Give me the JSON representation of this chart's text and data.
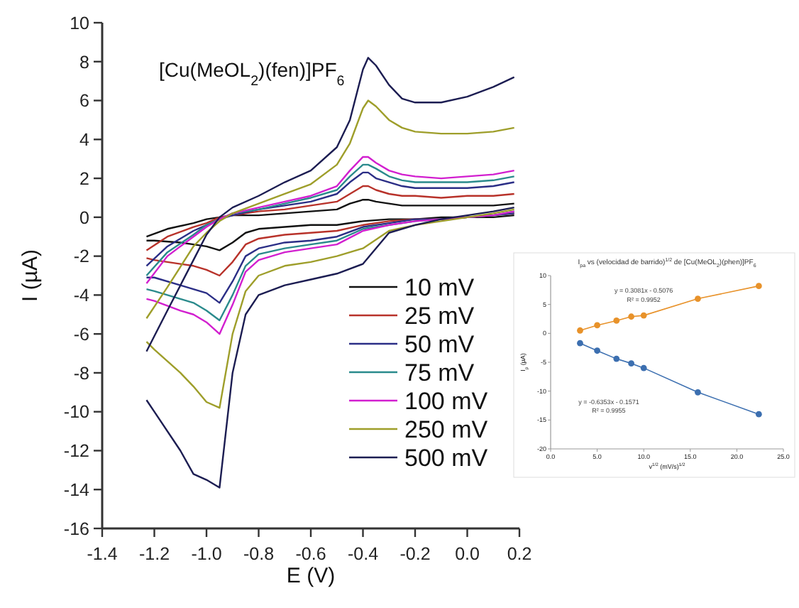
{
  "chart_data": [
    {
      "type": "line",
      "title": "[Cu(MeOL$_{2}$)(fen)]PF$_{6}$",
      "xlabel": "E (V)",
      "ylabel": "I (µA)",
      "xlim": [
        -1.4,
        0.2
      ],
      "ylim": [
        -16,
        10
      ],
      "xticks": [
        {
          "value": -1.4,
          "label": "-1.4"
        },
        {
          "value": -1.2,
          "label": "-1.2"
        },
        {
          "value": -1,
          "label": "-1.0"
        },
        {
          "value": -0.8,
          "label": "-0.8"
        },
        {
          "value": -0.6,
          "label": "-0.6"
        },
        {
          "value": -0.4,
          "label": "-0.4"
        },
        {
          "value": -0.2,
          "label": "-0.2"
        },
        {
          "value": 0,
          "label": "0.0"
        },
        {
          "value": 0.2,
          "label": "0.2"
        }
      ],
      "yticks": [
        -16,
        -14,
        -12,
        -10,
        -8,
        -6,
        -4,
        -2,
        0,
        2,
        4,
        6,
        8,
        10
      ],
      "grid": false,
      "legend": "bottom right",
      "marker": "none",
      "line_style": "solid",
      "x": [
        -1.23,
        -1.15,
        -1.05,
        -1.0,
        -0.95,
        -0.9,
        -0.8,
        -0.7,
        -0.6,
        -0.5,
        -0.45,
        -0.4,
        -0.38,
        -0.35,
        -0.3,
        -0.25,
        -0.2,
        -0.1,
        0.0,
        0.1,
        0.18
      ],
      "series": [
        {
          "name": "10 mV",
          "color": "#111111",
          "values": [
            -1.0,
            -0.6,
            -0.3,
            -0.1,
            0.0,
            0.1,
            0.1,
            0.2,
            0.3,
            0.4,
            0.7,
            0.9,
            0.9,
            0.8,
            0.7,
            0.6,
            0.6,
            0.6,
            0.6,
            0.6,
            0.7
          ]
        },
        {
          "color": "#111111",
          "x": [
            0.18,
            0.1,
            0.0,
            -0.1,
            -0.2,
            -0.3,
            -0.4,
            -0.5,
            -0.6,
            -0.7,
            -0.8,
            -0.85,
            -0.9,
            -0.95,
            -1.0,
            -1.05,
            -1.1,
            -1.2,
            -1.23
          ],
          "values": [
            0.1,
            0.0,
            0.0,
            0.0,
            -0.1,
            -0.1,
            -0.2,
            -0.4,
            -0.4,
            -0.5,
            -0.6,
            -0.8,
            -1.3,
            -1.7,
            -1.5,
            -1.4,
            -1.3,
            -1.2,
            -1.2
          ]
        },
        {
          "name": "25 mV",
          "color": "#b8322a",
          "values": [
            -1.7,
            -1.0,
            -0.5,
            -0.3,
            0.0,
            0.1,
            0.3,
            0.4,
            0.6,
            0.8,
            1.2,
            1.6,
            1.6,
            1.4,
            1.2,
            1.1,
            1.1,
            1.0,
            1.1,
            1.1,
            1.2
          ]
        },
        {
          "color": "#b8322a",
          "x": [
            0.18,
            0.1,
            0.0,
            -0.1,
            -0.2,
            -0.3,
            -0.4,
            -0.5,
            -0.6,
            -0.7,
            -0.8,
            -0.85,
            -0.9,
            -0.95,
            -1.0,
            -1.05,
            -1.1,
            -1.2,
            -1.23
          ],
          "values": [
            0.2,
            0.1,
            0.0,
            -0.1,
            -0.1,
            -0.2,
            -0.4,
            -0.7,
            -0.8,
            -0.9,
            -1.1,
            -1.4,
            -2.3,
            -3.0,
            -2.7,
            -2.5,
            -2.4,
            -2.2,
            -2.1
          ]
        },
        {
          "name": "50 mV",
          "color": "#2b2e86",
          "values": [
            -2.5,
            -1.5,
            -0.7,
            -0.4,
            -0.1,
            0.1,
            0.4,
            0.6,
            0.8,
            1.2,
            1.8,
            2.3,
            2.3,
            2.0,
            1.8,
            1.6,
            1.5,
            1.5,
            1.5,
            1.6,
            1.8
          ]
        },
        {
          "color": "#2b2e86",
          "x": [
            0.18,
            0.1,
            0.0,
            -0.1,
            -0.2,
            -0.3,
            -0.4,
            -0.5,
            -0.6,
            -0.7,
            -0.8,
            -0.85,
            -0.9,
            -0.95,
            -1.0,
            -1.05,
            -1.1,
            -1.2,
            -1.23
          ],
          "values": [
            0.2,
            0.1,
            0.0,
            -0.1,
            -0.1,
            -0.3,
            -0.5,
            -1.0,
            -1.2,
            -1.3,
            -1.6,
            -2.0,
            -3.3,
            -4.4,
            -3.9,
            -3.7,
            -3.5,
            -3.1,
            -3.1
          ]
        },
        {
          "name": "75 mV",
          "color": "#2a8a8c",
          "values": [
            -3.0,
            -1.8,
            -0.9,
            -0.4,
            -0.1,
            0.2,
            0.4,
            0.7,
            1.0,
            1.4,
            2.1,
            2.7,
            2.7,
            2.5,
            2.1,
            1.9,
            1.8,
            1.8,
            1.8,
            1.9,
            2.1
          ]
        },
        {
          "color": "#2a8a8c",
          "x": [
            0.18,
            0.1,
            0.0,
            -0.1,
            -0.2,
            -0.3,
            -0.4,
            -0.5,
            -0.6,
            -0.7,
            -0.8,
            -0.85,
            -0.9,
            -0.95,
            -1.0,
            -1.05,
            -1.1,
            -1.2,
            -1.23
          ],
          "values": [
            0.3,
            0.1,
            0.0,
            -0.1,
            -0.2,
            -0.4,
            -0.6,
            -1.2,
            -1.4,
            -1.6,
            -1.9,
            -2.5,
            -4.0,
            -5.3,
            -4.8,
            -4.4,
            -4.2,
            -3.8,
            -3.7
          ]
        },
        {
          "name": "100 mV",
          "color": "#d21fcf",
          "values": [
            -3.4,
            -2.0,
            -1.0,
            -0.5,
            -0.1,
            0.2,
            0.5,
            0.8,
            1.1,
            1.6,
            2.4,
            3.1,
            3.1,
            2.8,
            2.4,
            2.2,
            2.1,
            2.0,
            2.1,
            2.2,
            2.4
          ]
        },
        {
          "color": "#d21fcf",
          "x": [
            0.18,
            0.1,
            0.0,
            -0.1,
            -0.2,
            -0.3,
            -0.4,
            -0.5,
            -0.6,
            -0.7,
            -0.8,
            -0.85,
            -0.9,
            -0.95,
            -1.0,
            -1.05,
            -1.1,
            -1.2,
            -1.23
          ],
          "values": [
            0.3,
            0.1,
            0.0,
            -0.1,
            -0.2,
            -0.4,
            -0.7,
            -1.4,
            -1.6,
            -1.8,
            -2.2,
            -2.8,
            -4.5,
            -6.0,
            -5.4,
            -5.0,
            -4.8,
            -4.3,
            -4.2
          ]
        },
        {
          "name": "250 mV",
          "color": "#9e9e2a",
          "values": [
            -5.2,
            -3.6,
            -1.5,
            -0.8,
            -0.2,
            0.2,
            0.7,
            1.2,
            1.7,
            2.7,
            3.8,
            5.6,
            6.0,
            5.7,
            5.0,
            4.6,
            4.4,
            4.3,
            4.3,
            4.4,
            4.6
          ]
        },
        {
          "color": "#9e9e2a",
          "x": [
            0.18,
            0.1,
            0.0,
            -0.1,
            -0.2,
            -0.3,
            -0.4,
            -0.5,
            -0.6,
            -0.7,
            -0.8,
            -0.85,
            -0.9,
            -0.95,
            -1.0,
            -1.05,
            -1.1,
            -1.2,
            -1.23
          ],
          "values": [
            0.4,
            0.2,
            0.0,
            -0.2,
            -0.4,
            -0.7,
            -1.6,
            -2.0,
            -2.3,
            -2.5,
            -3.0,
            -3.8,
            -6.0,
            -9.8,
            -9.5,
            -8.7,
            -8.0,
            -6.8,
            -6.4
          ]
        },
        {
          "name": "500 mV",
          "color": "#1c1d52",
          "values": [
            -6.9,
            -4.8,
            -2.2,
            -0.9,
            0.0,
            0.5,
            1.1,
            1.8,
            2.4,
            3.6,
            5.0,
            7.6,
            8.2,
            7.8,
            6.8,
            6.1,
            5.9,
            5.9,
            6.2,
            6.7,
            7.2
          ]
        },
        {
          "color": "#1c1d52",
          "x": [
            0.18,
            0.1,
            0.0,
            -0.1,
            -0.2,
            -0.3,
            -0.4,
            -0.5,
            -0.6,
            -0.7,
            -0.8,
            -0.85,
            -0.9,
            -0.95,
            -1.0,
            -1.05,
            -1.1,
            -1.2,
            -1.23
          ],
          "values": [
            0.5,
            0.3,
            0.1,
            -0.1,
            -0.4,
            -0.8,
            -2.4,
            -2.9,
            -3.2,
            -3.5,
            -4.0,
            -5.0,
            -8.0,
            -13.9,
            -13.5,
            -13.2,
            -12.0,
            -10.0,
            -9.4
          ]
        }
      ]
    },
    {
      "type": "line",
      "title": "I$_{pa}$ vs (velocidad de barrido)$^{1/2}$ de [Cu(MeOL$_{2}$)(phen)]PF$_{6}$",
      "xlabel": "v$^{1/2}$ (mV/s)$^{1/2}$",
      "ylabel": "I$_{p}$ (µA)",
      "xlim": [
        0,
        25
      ],
      "ylim": [
        -20,
        10
      ],
      "xticks": [
        {
          "value": 0,
          "label": "0.0"
        },
        {
          "value": 5,
          "label": "5.0"
        },
        {
          "value": 10,
          "label": "10.0"
        },
        {
          "value": 15,
          "label": "15.0"
        },
        {
          "value": 20,
          "label": "20.0"
        },
        {
          "value": 25,
          "label": "25.0"
        }
      ],
      "yticks": [
        -20,
        -15,
        -10,
        -5,
        0,
        5,
        10
      ],
      "marker": "circle",
      "line_style": "solid",
      "x": [
        3.16,
        5,
        7.07,
        8.66,
        10,
        15.81,
        22.36
      ],
      "series": [
        {
          "color": "#e8922a",
          "values": [
            0.5,
            1.4,
            2.2,
            2.9,
            3.1,
            6.0,
            8.2
          ]
        },
        {
          "color": "#3c6fb0",
          "values": [
            -1.7,
            -3.0,
            -4.4,
            -5.2,
            -6.0,
            -10.2,
            -14.0
          ]
        }
      ],
      "annotations": [
        "y = 0.3081x - 0.5076",
        "R² = 0.9952",
        "y = -0.6353x - 0.1571",
        "R² = 0.9955"
      ]
    }
  ]
}
